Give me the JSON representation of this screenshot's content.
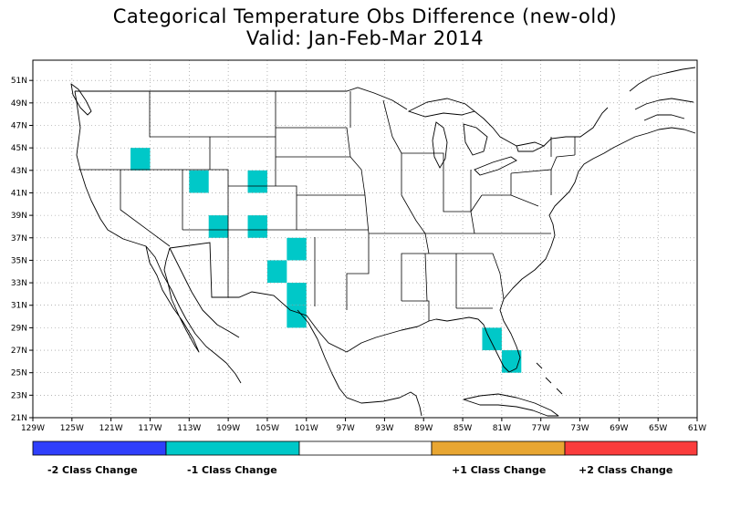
{
  "title_line1": "Categorical Temperature Obs Difference (new-old)",
  "title_line2": "Valid: Jan-Feb-Mar 2014",
  "lon_ticks": [
    "129W",
    "125W",
    "121W",
    "117W",
    "113W",
    "109W",
    "105W",
    "101W",
    "97W",
    "93W",
    "89W",
    "85W",
    "81W",
    "77W",
    "73W",
    "69W",
    "65W",
    "61W"
  ],
  "lat_ticks": [
    "21N",
    "23N",
    "25N",
    "27N",
    "29N",
    "31N",
    "33N",
    "35N",
    "37N",
    "39N",
    "41N",
    "43N",
    "45N",
    "47N",
    "49N",
    "51N"
  ],
  "colors": {
    "minus2": "#2f3ffb",
    "minus1": "#00c8c8",
    "zero": "#ffffff",
    "plus1": "#e8a632",
    "plus2": "#fa3c3c"
  },
  "legend": {
    "minus2": "-2 Class Change",
    "minus1": "-1 Class Change",
    "plus1": "+1 Class Change",
    "plus2": "+2 Class Change"
  },
  "cells": [
    {
      "lon": -118,
      "lat": 44,
      "category": -1
    },
    {
      "lon": -112,
      "lat": 42,
      "category": -1
    },
    {
      "lon": -106,
      "lat": 42,
      "category": -1
    },
    {
      "lon": -110,
      "lat": 38,
      "category": -1
    },
    {
      "lon": -106,
      "lat": 38,
      "category": -1
    },
    {
      "lon": -102,
      "lat": 36,
      "category": -1
    },
    {
      "lon": -104,
      "lat": 34,
      "category": -1
    },
    {
      "lon": -102,
      "lat": 32,
      "category": -1
    },
    {
      "lon": -102,
      "lat": 30,
      "category": -1
    },
    {
      "lon": -82,
      "lat": 28,
      "category": -1
    },
    {
      "lon": -80,
      "lat": 26,
      "category": -1
    }
  ]
}
